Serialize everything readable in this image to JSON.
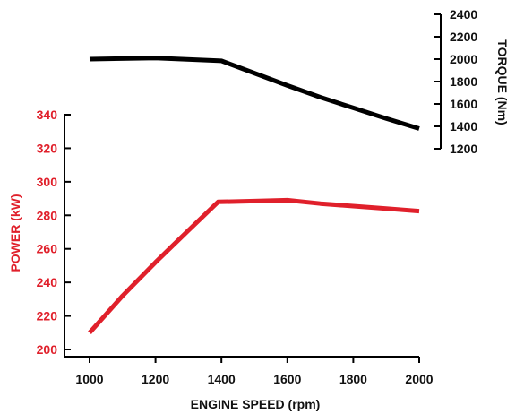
{
  "colors": {
    "power": "#e0202b",
    "torque": "#000000",
    "axis": "#000000"
  },
  "chart_data": {
    "type": "line",
    "title": "",
    "xlabel": "ENGINE SPEED (rpm)",
    "x_ticks": [
      1000,
      1200,
      1400,
      1600,
      1800,
      2000
    ],
    "xlim": [
      1000,
      2000
    ],
    "grid": false,
    "legend": "none",
    "y_left": {
      "label": "POWER (kW)",
      "ticks": [
        200,
        220,
        240,
        260,
        280,
        300,
        320,
        340
      ],
      "ylim": [
        200,
        340
      ]
    },
    "y_right": {
      "label": "TORQUE (Nm)",
      "ticks": [
        1200,
        1400,
        1600,
        1800,
        2000,
        2200,
        2400
      ],
      "ylim": [
        1200,
        2400
      ]
    },
    "series": [
      {
        "key": "torque",
        "axis": "right",
        "x": [
          1000,
          1200,
          1400,
          1500,
          1600,
          1700,
          1800,
          1900,
          2000
        ],
        "y": [
          2000,
          2010,
          1985,
          1875,
          1765,
          1660,
          1565,
          1470,
          1380
        ]
      },
      {
        "key": "power",
        "axis": "left",
        "x": [
          1000,
          1100,
          1200,
          1300,
          1390,
          1500,
          1600,
          1700,
          1800,
          1900,
          2000
        ],
        "y": [
          210,
          232,
          252,
          271,
          288,
          288.5,
          289,
          287,
          285.5,
          284,
          282.5
        ]
      }
    ]
  }
}
